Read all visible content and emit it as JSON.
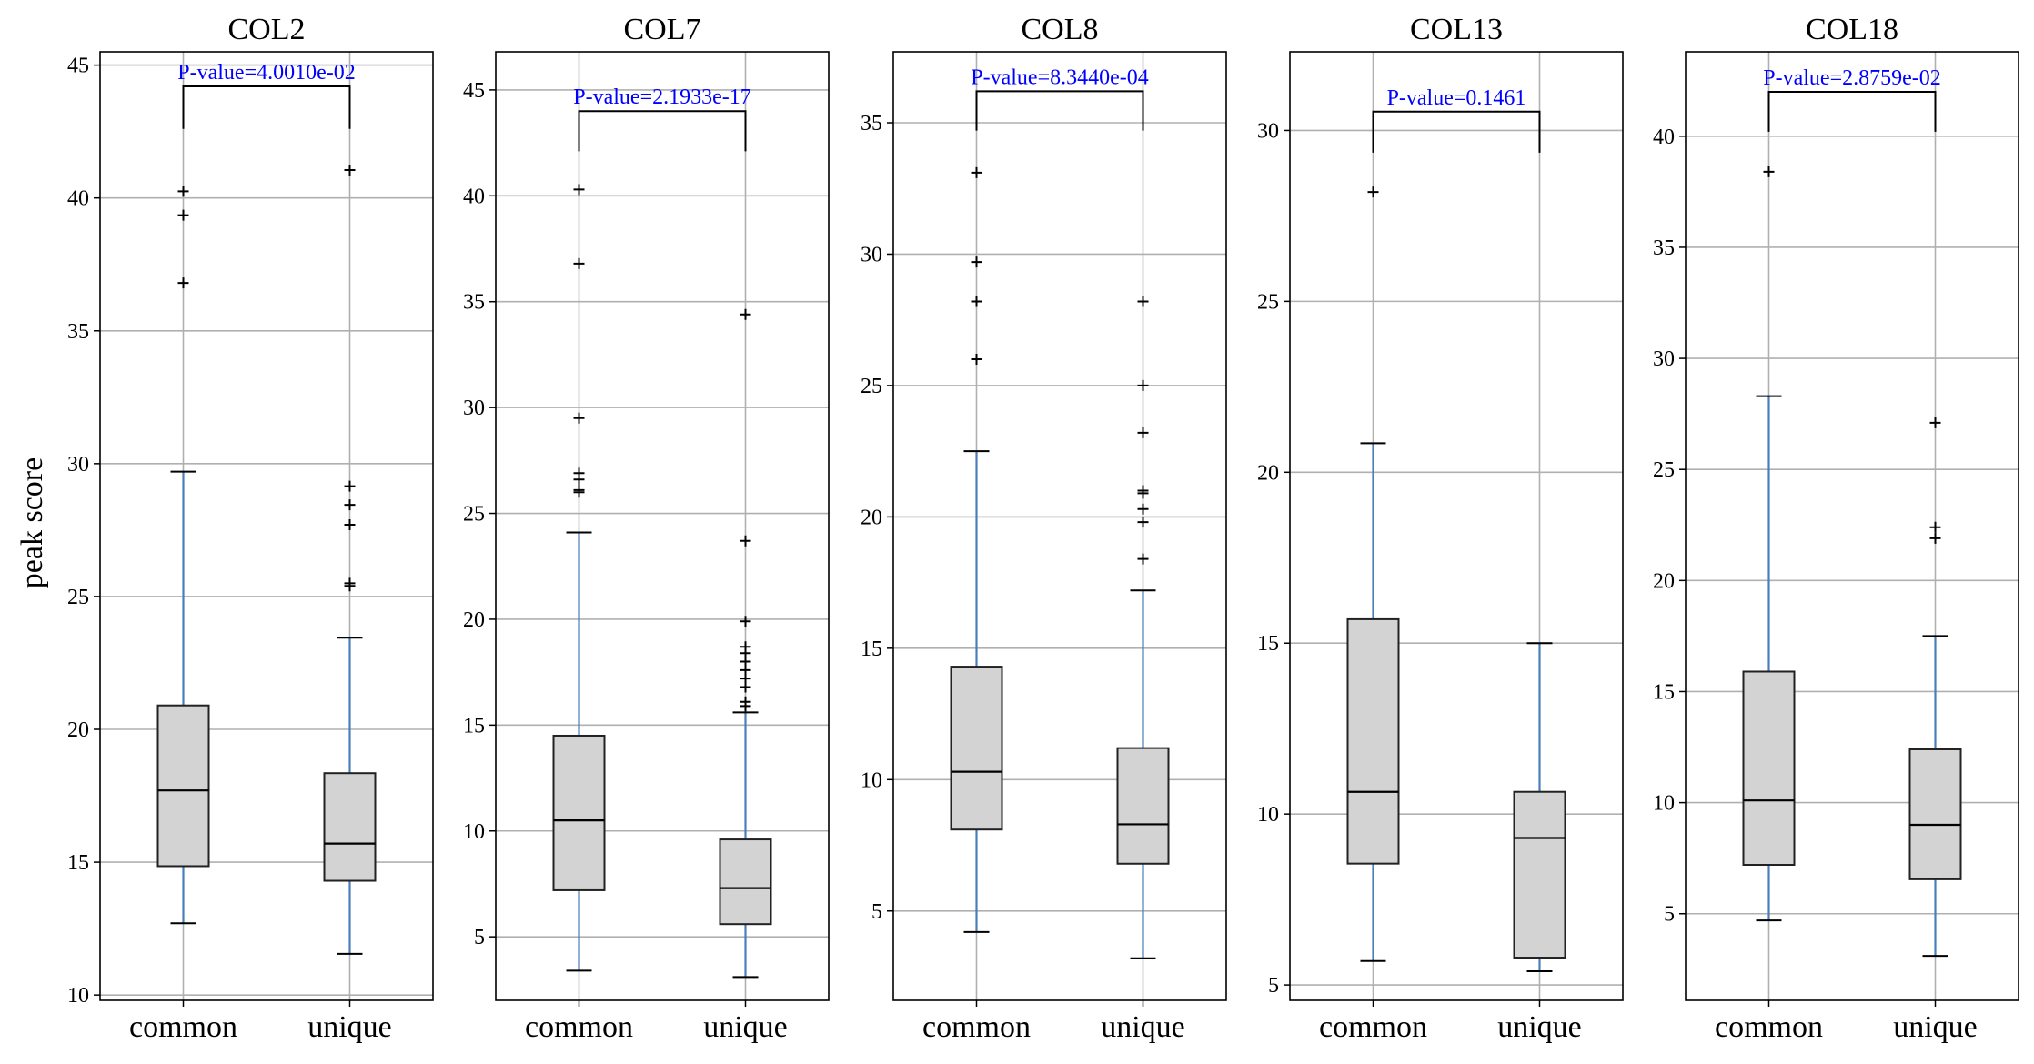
{
  "figure": {
    "ylabel": "peak score"
  },
  "style": {
    "box_fill": "#d3d3d3",
    "box_edge": "#222222",
    "whisker_color": "#4a7ebb",
    "grid_color": "#b0b0b0",
    "pvalue_color": "#0000ff"
  },
  "chart_data": [
    {
      "type": "box",
      "title": "COL2",
      "categories": [
        "common",
        "unique"
      ],
      "ylim": [
        9.8,
        45.5
      ],
      "yticks": [
        10,
        15,
        20,
        25,
        30,
        35,
        40,
        45
      ],
      "grid": true,
      "pvalue_label": "P-value=4.0010e-02",
      "bracket_y": [
        42.6,
        44.2
      ],
      "boxes": [
        {
          "category": "common",
          "whisker_low": 12.7,
          "q1": 14.85,
          "median": 17.7,
          "q3": 20.9,
          "whisker_high": 29.7,
          "fliers": [
            36.8,
            39.35,
            40.25
          ]
        },
        {
          "category": "unique",
          "whisker_low": 11.55,
          "q1": 14.3,
          "median": 15.7,
          "q3": 18.35,
          "whisker_high": 23.45,
          "fliers": [
            25.4,
            25.5,
            27.7,
            28.45,
            29.15,
            41.05
          ]
        }
      ]
    },
    {
      "type": "box",
      "title": "COL7",
      "categories": [
        "common",
        "unique"
      ],
      "ylim": [
        2.0,
        46.8
      ],
      "yticks": [
        5,
        10,
        15,
        20,
        25,
        30,
        35,
        40,
        45
      ],
      "grid": true,
      "pvalue_label": "P-value=2.1933e-17",
      "bracket_y": [
        42.1,
        44.0
      ],
      "boxes": [
        {
          "category": "common",
          "whisker_low": 3.4,
          "q1": 7.2,
          "median": 10.5,
          "q3": 14.5,
          "whisker_high": 24.1,
          "fliers": [
            26.0,
            26.1,
            26.6,
            26.9,
            29.5,
            36.8,
            40.3
          ]
        },
        {
          "category": "unique",
          "whisker_low": 3.1,
          "q1": 5.6,
          "median": 7.3,
          "q3": 9.6,
          "whisker_high": 15.6,
          "fliers": [
            15.9,
            16.1,
            16.8,
            17.2,
            17.6,
            18.0,
            18.4,
            18.7,
            19.9,
            23.7,
            34.4
          ]
        }
      ]
    },
    {
      "type": "box",
      "title": "COL8",
      "categories": [
        "common",
        "unique"
      ],
      "ylim": [
        1.6,
        37.7
      ],
      "yticks": [
        5,
        10,
        15,
        20,
        25,
        30,
        35
      ],
      "grid": true,
      "pvalue_label": "P-value=8.3440e-04",
      "bracket_y": [
        34.7,
        36.2
      ],
      "boxes": [
        {
          "category": "common",
          "whisker_low": 4.2,
          "q1": 8.1,
          "median": 10.3,
          "q3": 14.3,
          "whisker_high": 22.5,
          "fliers": [
            26.0,
            28.2,
            29.7,
            33.1
          ]
        },
        {
          "category": "unique",
          "whisker_low": 3.2,
          "q1": 6.8,
          "median": 8.3,
          "q3": 11.2,
          "whisker_high": 17.2,
          "fliers": [
            18.4,
            19.8,
            20.3,
            20.9,
            21.0,
            23.2,
            25.0,
            28.2
          ]
        }
      ]
    },
    {
      "type": "box",
      "title": "COL13",
      "categories": [
        "common",
        "unique"
      ],
      "ylim": [
        4.55,
        32.3
      ],
      "yticks": [
        5,
        10,
        15,
        20,
        25,
        30
      ],
      "grid": true,
      "pvalue_label": "P-value=0.1461",
      "bracket_y": [
        29.35,
        30.55
      ],
      "boxes": [
        {
          "category": "common",
          "whisker_low": 5.7,
          "q1": 8.55,
          "median": 10.65,
          "q3": 15.7,
          "whisker_high": 20.85,
          "fliers": [
            28.2
          ]
        },
        {
          "category": "unique",
          "whisker_low": 5.4,
          "q1": 5.8,
          "median": 9.3,
          "q3": 10.65,
          "whisker_high": 15.0,
          "fliers": []
        }
      ]
    },
    {
      "type": "box",
      "title": "COL18",
      "categories": [
        "common",
        "unique"
      ],
      "ylim": [
        1.1,
        43.8
      ],
      "yticks": [
        5,
        10,
        15,
        20,
        25,
        30,
        35,
        40
      ],
      "grid": true,
      "pvalue_label": "P-value=2.8759e-02",
      "bracket_y": [
        40.2,
        42.0
      ],
      "boxes": [
        {
          "category": "common",
          "whisker_low": 4.7,
          "q1": 7.2,
          "median": 10.1,
          "q3": 15.9,
          "whisker_high": 28.3,
          "fliers": [
            38.4
          ]
        },
        {
          "category": "unique",
          "whisker_low": 3.1,
          "q1": 6.55,
          "median": 9.0,
          "q3": 12.4,
          "whisker_high": 17.5,
          "fliers": [
            21.9,
            22.4,
            27.1
          ]
        }
      ]
    }
  ]
}
